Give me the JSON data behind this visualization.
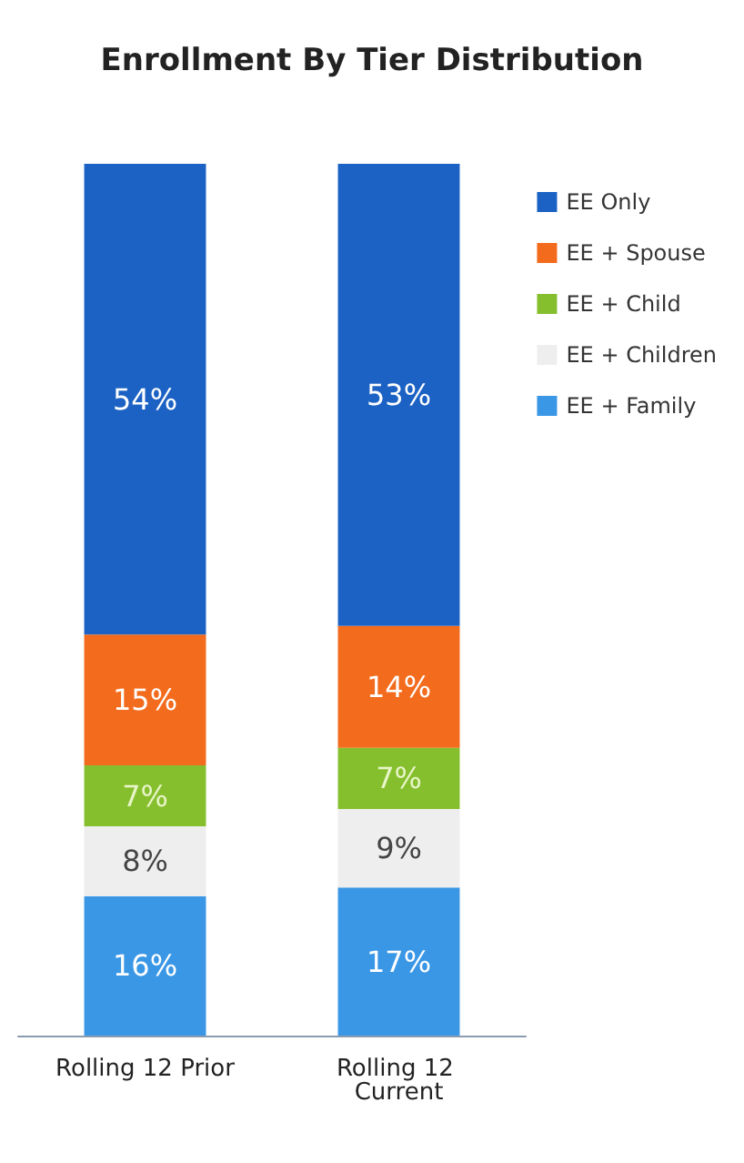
{
  "chart_data": {
    "type": "bar",
    "title": "Enrollment By Tier Distribution",
    "categories": [
      "Rolling 12 Prior",
      "Rolling 12 Current"
    ],
    "stacked": true,
    "legend": "right",
    "series": [
      {
        "name": "EE + Family",
        "color": "#3a97e6",
        "values": [
          16,
          17
        ],
        "value_labels": [
          "16%",
          "17%"
        ]
      },
      {
        "name": "EE + Children",
        "color": "#eeeeee",
        "values": [
          8,
          9
        ],
        "value_labels": [
          "8%",
          "9%"
        ]
      },
      {
        "name": "EE + Child",
        "color": "#86bf2e",
        "values": [
          7,
          7
        ],
        "value_labels": [
          "7%",
          "7%"
        ]
      },
      {
        "name": "EE + Spouse",
        "color": "#f36b1c",
        "values": [
          15,
          14
        ],
        "value_labels": [
          "15%",
          "14%"
        ]
      },
      {
        "name": "EE Only",
        "color": "#1c62c4",
        "values": [
          54,
          53
        ],
        "value_labels": [
          "54%",
          "53%"
        ]
      }
    ]
  }
}
